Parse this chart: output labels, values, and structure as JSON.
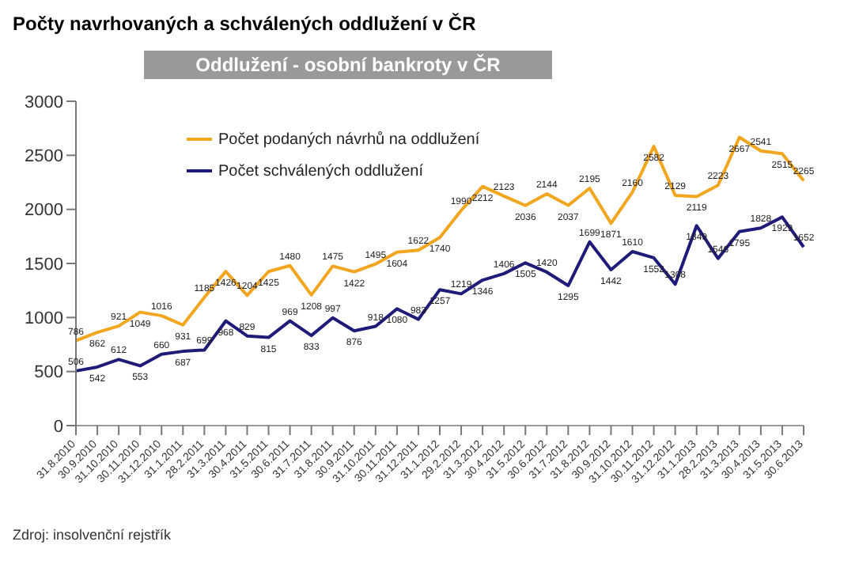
{
  "chart_data": {
    "type": "line",
    "title": "Počty navrhovaných a schválených oddlužení v ČR",
    "subtitle": "Oddlužení - osobní bankroty v ČR",
    "categories": [
      "31.8.2010",
      "30.9.2010",
      "31.10.2010",
      "30.11.2010",
      "31.12.2010",
      "31.1.2011",
      "28.2.2011",
      "31.3.2011",
      "30.4.2011",
      "31.5.2011",
      "30.6.2011",
      "31.7.2011",
      "31.8.2011",
      "30.9.2011",
      "31.10.2011",
      "30.11.2011",
      "31.12.2011",
      "31.1.2012",
      "29.2.2012",
      "31.3.2012",
      "30.4.2012",
      "31.5.2012",
      "30.6.2012",
      "31.7.2012",
      "31.8.2012",
      "30.9.2012",
      "31.10.2012",
      "30.11.2012",
      "31.12.2012",
      "31.1.2013",
      "28.2.2013",
      "31.3.2013",
      "30.4.2013",
      "31.5.2013",
      "30.6.2013"
    ],
    "series": [
      {
        "name": "Počet podaných návrhů na oddlužení",
        "color": "#f2a51e",
        "values": [
          786,
          862,
          921,
          1049,
          1016,
          931,
          1185,
          1426,
          1204,
          1425,
          1480,
          1208,
          1475,
          1422,
          1495,
          1604,
          1622,
          1740,
          1990,
          2212,
          2123,
          2036,
          2144,
          2037,
          2195,
          1871,
          2160,
          2582,
          2129,
          2119,
          2223,
          2667,
          2541,
          2515,
          2265
        ]
      },
      {
        "name": "Počet schválených oddlužení",
        "color": "#1f1b78",
        "values": [
          506,
          542,
          612,
          553,
          660,
          687,
          699,
          968,
          829,
          815,
          969,
          833,
          997,
          876,
          918,
          1080,
          983,
          1257,
          1219,
          1346,
          1406,
          1505,
          1420,
          1295,
          1699,
          1442,
          1610,
          1552,
          1308,
          1849,
          1546,
          1795,
          1828,
          1929,
          1652
        ]
      }
    ],
    "ylim": [
      0,
      3000
    ],
    "yticks": [
      0,
      500,
      1000,
      1500,
      2000,
      2500,
      3000
    ],
    "grid": false,
    "legend": "top left",
    "marker": "none",
    "data_labels": true,
    "annotations": [
      "Zdroj: insolvenční rejstřík"
    ]
  }
}
